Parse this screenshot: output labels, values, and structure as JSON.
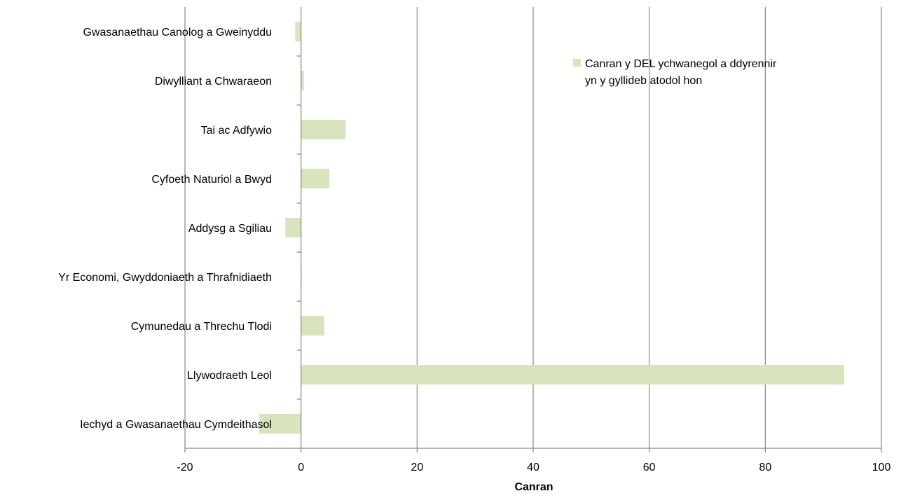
{
  "chart_data": {
    "type": "bar",
    "orientation": "horizontal",
    "categories": [
      "Gwasanaethau Canolog a Gweinyddu",
      "Diwylliant a Chwaraeon",
      "Tai ac Adfywio",
      "Cyfoeth Naturiol a Bwyd",
      "Addysg a Sgiliau",
      "Yr Economi, Gwyddoniaeth a Thrafnidiaeth",
      "Cymunedau a Threchu Tlodi",
      "Llywodraeth Leol",
      "Iechyd a Gwasanaethau Cymdeithasol"
    ],
    "series": [
      {
        "name": "Canran y DEL ychwanegol a ddyrennir yn y gyllideb atodol hon",
        "values": [
          -1.0,
          0.5,
          7.7,
          4.9,
          -2.7,
          0.1,
          4.0,
          93.6,
          -7.2
        ],
        "color": "#d7e4bd"
      }
    ],
    "xlabel": "Canran",
    "xlim": [
      -20,
      100
    ],
    "xticks": [
      -20,
      0,
      20,
      40,
      60,
      80,
      100
    ],
    "grid": "vertical",
    "legend_position": "top-right"
  }
}
